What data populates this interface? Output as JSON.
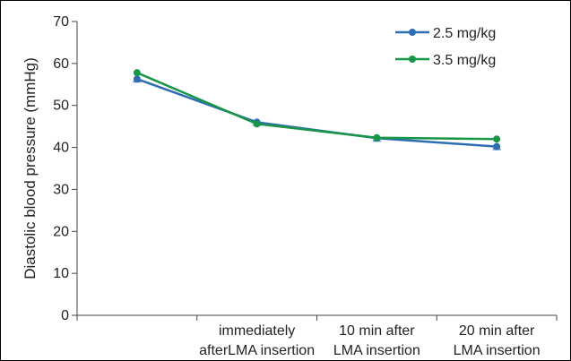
{
  "chart_data": {
    "type": "line",
    "title": "",
    "xlabel": "",
    "ylabel": "Diastolic blood pressure (mmHg)",
    "ylim": [
      0,
      70
    ],
    "yticks": [
      0,
      10,
      20,
      30,
      40,
      50,
      60,
      70
    ],
    "grid": false,
    "legend": "top-right",
    "categories": [
      [
        "",
        ""
      ],
      [
        "immediately",
        "afterLMA insertion"
      ],
      [
        "10 min after",
        "LMA insertion"
      ],
      [
        "20 min after",
        "LMA insertion"
      ]
    ],
    "series": [
      {
        "name": "2.5 mg/kg",
        "color": "#2f6db3",
        "values": [
          56.3,
          46.0,
          42.2,
          40.2
        ]
      },
      {
        "name": "3.5 mg/kg",
        "color": "#169646",
        "values": [
          57.8,
          45.6,
          42.3,
          42.0
        ]
      }
    ]
  }
}
